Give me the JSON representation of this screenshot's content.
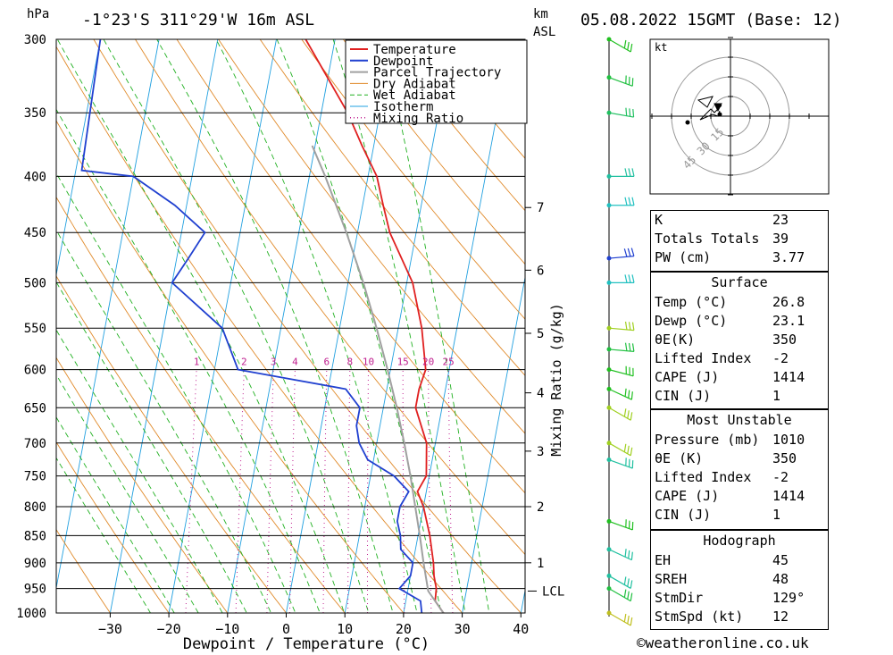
{
  "header": {
    "location": "-1°23'S 311°29'W 16m ASL",
    "datetime": "05.08.2022 15GMT (Base: 12)",
    "left_unit": "hPa",
    "km_unit": "km",
    "asl_unit": "ASL",
    "footer": "©weatheronline.co.uk"
  },
  "chart_data": {
    "type": "line",
    "xlabel": "Dewpoint / Temperature (°C)",
    "ylabel_right": "Mixing Ratio (g/kg)",
    "x_ticks": [
      -30,
      -20,
      -10,
      0,
      10,
      20,
      30,
      40
    ],
    "pressure_levels": [
      300,
      350,
      400,
      450,
      500,
      550,
      600,
      650,
      700,
      750,
      800,
      850,
      900,
      950,
      1000
    ],
    "km_ticks": [
      {
        "km": "1",
        "p": 900
      },
      {
        "km": "2",
        "p": 800
      },
      {
        "km": "3",
        "p": 712
      },
      {
        "km": "4",
        "p": 630
      },
      {
        "km": "5",
        "p": 556
      },
      {
        "km": "6",
        "p": 487
      },
      {
        "km": "7",
        "p": 427
      }
    ],
    "lcl": {
      "label": "LCL",
      "p": 955
    },
    "mixing_ratio_labels": [
      "1",
      "2",
      "3",
      "4",
      "6",
      "8",
      "10",
      "15",
      "20",
      "25"
    ],
    "legend": [
      "Temperature",
      "Dewpoint",
      "Parcel Trajectory",
      "Dry Adiabat",
      "Wet Adiabat",
      "Isotherm",
      "Mixing Ratio"
    ],
    "series": [
      {
        "name": "Temperature",
        "color": "#e02020",
        "points": [
          [
            1000,
            26.8
          ],
          [
            975,
            25
          ],
          [
            950,
            24.8
          ],
          [
            925,
            24
          ],
          [
            900,
            23.5
          ],
          [
            850,
            22
          ],
          [
            800,
            20
          ],
          [
            775,
            18.5
          ],
          [
            750,
            19.5
          ],
          [
            700,
            18.5
          ],
          [
            650,
            15.5
          ],
          [
            625,
            15.5
          ],
          [
            600,
            16
          ],
          [
            550,
            14
          ],
          [
            500,
            11
          ],
          [
            450,
            5.5
          ],
          [
            425,
            3.5
          ],
          [
            400,
            1.5
          ],
          [
            375,
            -2
          ],
          [
            350,
            -5.5
          ],
          [
            300,
            -15
          ]
        ]
      },
      {
        "name": "Dewpoint",
        "color": "#2040d0",
        "points": [
          [
            1000,
            23.1
          ],
          [
            975,
            22.5
          ],
          [
            950,
            18.5
          ],
          [
            925,
            20
          ],
          [
            900,
            20
          ],
          [
            875,
            17.5
          ],
          [
            850,
            17
          ],
          [
            825,
            16
          ],
          [
            800,
            16
          ],
          [
            775,
            17
          ],
          [
            750,
            14
          ],
          [
            725,
            9
          ],
          [
            700,
            7
          ],
          [
            675,
            6
          ],
          [
            650,
            6
          ],
          [
            625,
            3
          ],
          [
            600,
            -16
          ],
          [
            550,
            -20
          ],
          [
            500,
            -30
          ],
          [
            475,
            -28
          ],
          [
            450,
            -26
          ],
          [
            425,
            -32
          ],
          [
            400,
            -40
          ],
          [
            395,
            -49
          ],
          [
            300,
            -50
          ]
        ]
      },
      {
        "name": "Parcel Trajectory",
        "color": "#a0a0a0",
        "points": [
          [
            1000,
            26.8
          ],
          [
            955,
            23.5
          ],
          [
            900,
            21.8
          ],
          [
            850,
            20.3
          ],
          [
            800,
            18.6
          ],
          [
            750,
            16.8
          ],
          [
            700,
            14.7
          ],
          [
            650,
            12.3
          ],
          [
            600,
            9.5
          ],
          [
            550,
            6.3
          ],
          [
            500,
            2.6
          ],
          [
            450,
            -1.9
          ],
          [
            400,
            -7.3
          ],
          [
            375,
            -10.5
          ]
        ]
      }
    ]
  },
  "hodograph": {
    "unit_label": "kt",
    "ring_labels": [
      "15",
      "30",
      "45"
    ]
  },
  "indices": [
    {
      "label": "K",
      "value": "23"
    },
    {
      "label": "Totals Totals",
      "value": "39"
    },
    {
      "label": "PW (cm)",
      "value": "3.77"
    }
  ],
  "surface": {
    "title": "Surface",
    "rows": [
      {
        "label": "Temp (°C)",
        "value": "26.8"
      },
      {
        "label": "Dewp (°C)",
        "value": "23.1"
      },
      {
        "label": "θE(K)",
        "value": "350"
      },
      {
        "label": "Lifted Index",
        "value": "-2"
      },
      {
        "label": "CAPE (J)",
        "value": "1414"
      },
      {
        "label": "CIN (J)",
        "value": "1"
      }
    ]
  },
  "most_unstable": {
    "title": "Most Unstable",
    "rows": [
      {
        "label": "Pressure (mb)",
        "value": "1010"
      },
      {
        "label": "θE (K)",
        "value": "350"
      },
      {
        "label": "Lifted Index",
        "value": "-2"
      },
      {
        "label": "CAPE (J)",
        "value": "1414"
      },
      {
        "label": "CIN (J)",
        "value": "1"
      }
    ]
  },
  "hodograph_params": {
    "title": "Hodograph",
    "rows": [
      {
        "label": "EH",
        "value": "45"
      },
      {
        "label": "SREH",
        "value": "48"
      },
      {
        "label": "StmDir",
        "value": "129°"
      },
      {
        "label": "StmSpd (kt)",
        "value": "12"
      }
    ]
  },
  "colors": {
    "temperature": "#e02020",
    "dewpoint": "#2040d0",
    "parcel": "#a0a0a0",
    "dry_adiabat": "#e08a2a",
    "wet_adiabat": "#20b020",
    "isotherm": "#20a0e0",
    "mixing_ratio": "#c02090"
  }
}
